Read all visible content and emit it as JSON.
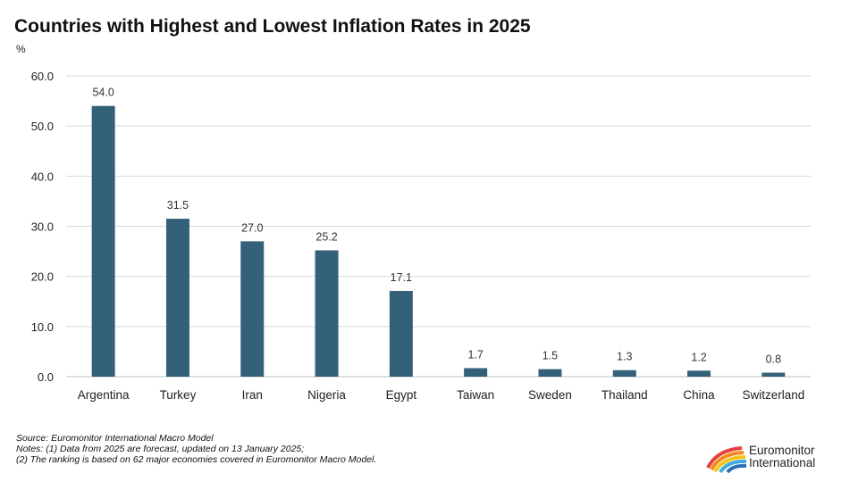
{
  "title": "Countries with Highest and Lowest Inflation Rates in 2025",
  "unit": "%",
  "notes": {
    "source": "Source: Euromonitor International Macro Model",
    "note1": "Notes: (1) Data from 2025 are forecast, updated on 13 January 2025;",
    "note2": "(2) The ranking is based on 62 major economies covered in Euromonitor Macro Model."
  },
  "logo": {
    "line1": "Euromonitor",
    "line2": "International"
  },
  "colors": {
    "bar": "#336179",
    "grid": "#d9d9d9",
    "axis": "#bfbfbf"
  },
  "chart_data": {
    "type": "bar",
    "categories": [
      "Argentina",
      "Turkey",
      "Iran",
      "Nigeria",
      "Egypt",
      "Taiwan",
      "Sweden",
      "Thailand",
      "China",
      "Switzerland"
    ],
    "values": [
      54.0,
      31.5,
      27.0,
      25.2,
      17.1,
      1.7,
      1.5,
      1.3,
      1.2,
      0.8
    ],
    "data_labels": [
      "54.0",
      "31.5",
      "27.0",
      "25.2",
      "17.1",
      "1.7",
      "1.5",
      "1.3",
      "1.2",
      "0.8"
    ],
    "yticks": [
      "0.0",
      "10.0",
      "20.0",
      "30.0",
      "40.0",
      "50.0",
      "60.0"
    ],
    "ylim": [
      0,
      60
    ],
    "grid": true,
    "legend": "none"
  }
}
